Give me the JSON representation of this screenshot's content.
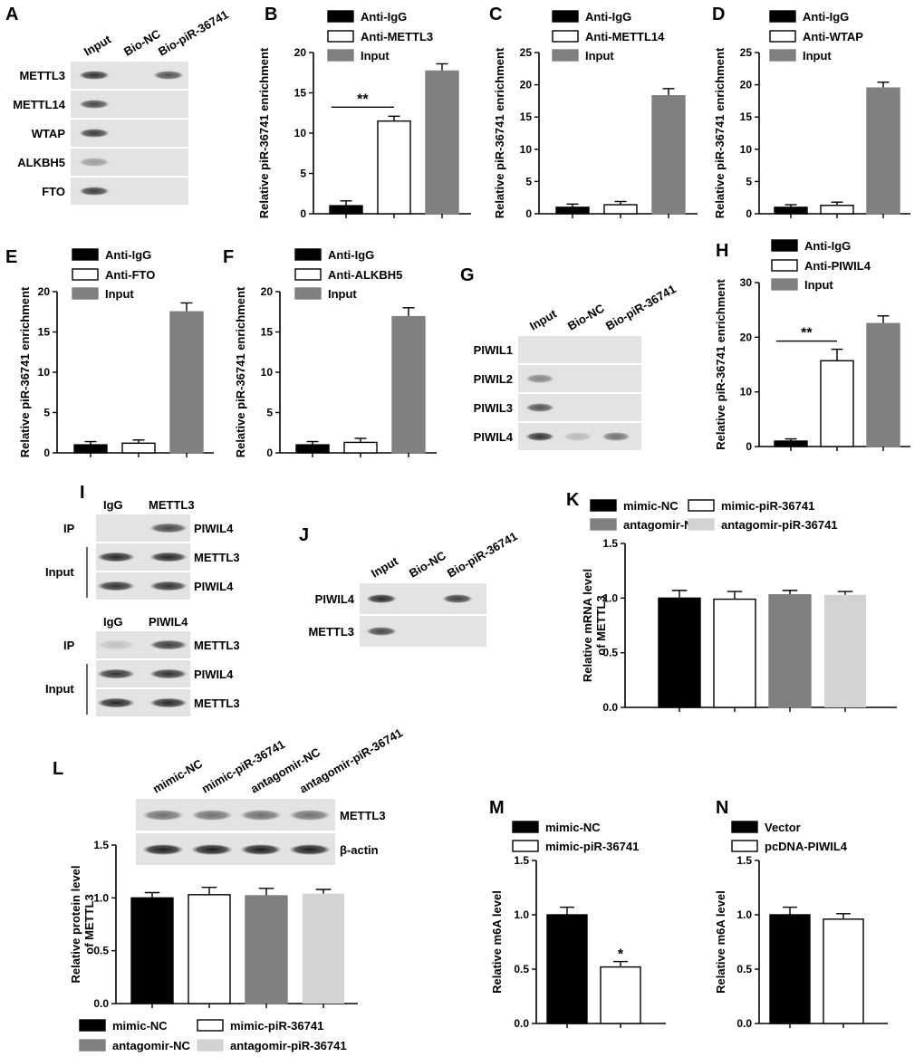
{
  "panels": {
    "A": {
      "label": "A",
      "lanes": [
        "Input",
        "Bio-NC",
        "Bio-piR-36741"
      ],
      "rows": [
        "METTL3",
        "METTL14",
        "WTAP",
        "ALKBH5",
        "FTO"
      ],
      "bands": [
        [
          0.85,
          0,
          0.7
        ],
        [
          0.75,
          0,
          0
        ],
        [
          0.8,
          0,
          0
        ],
        [
          0.35,
          0,
          0
        ],
        [
          0.8,
          0,
          0
        ]
      ]
    },
    "G": {
      "label": "G",
      "lanes": [
        "Input",
        "Bio-NC",
        "Bio-piR-36741"
      ],
      "rows": [
        "PIWIL1",
        "PIWIL2",
        "PIWIL3",
        "PIWIL4"
      ],
      "bands": [
        [
          0,
          0,
          0
        ],
        [
          0.45,
          0,
          0
        ],
        [
          0.7,
          0,
          0
        ],
        [
          0.85,
          0.2,
          0.55
        ]
      ]
    },
    "I": {
      "label": "I",
      "top": {
        "lanes": [
          "IgG",
          "METTL3"
        ],
        "rows": [
          {
            "name": "PIWIL4",
            "group": "IP",
            "bands": [
              0,
              0.75
            ]
          },
          {
            "name": "METTL3",
            "group": "Input",
            "bands": [
              0.9,
              0.9
            ]
          },
          {
            "name": "PIWIL4",
            "group": "Input",
            "bands": [
              0.85,
              0.85
            ]
          }
        ]
      },
      "bottom": {
        "lanes": [
          "IgG",
          "PIWIL4"
        ],
        "rows": [
          {
            "name": "METTL3",
            "group": "IP",
            "bands": [
              0.15,
              0.8
            ]
          },
          {
            "name": "PIWIL4",
            "group": "Input",
            "bands": [
              0.85,
              0.85
            ]
          },
          {
            "name": "METTL3",
            "group": "Input",
            "bands": [
              0.9,
              0.9
            ]
          }
        ]
      },
      "ip_label": "IP",
      "input_label": "Input"
    },
    "J": {
      "label": "J",
      "lanes": [
        "Input",
        "Bio-NC",
        "Bio-piR-36741"
      ],
      "rows": [
        "PIWIL4",
        "METTL3"
      ],
      "bands": [
        [
          0.9,
          0,
          0.8
        ],
        [
          0.75,
          0,
          0
        ]
      ]
    },
    "L_blot": {
      "label": "L",
      "lanes": [
        "mimic-NC",
        "mimic-piR-36741",
        "antagomir-NC",
        "antagomir-piR-36741"
      ],
      "rows": [
        "METTL3",
        "β-actin"
      ],
      "bands": [
        [
          0.55,
          0.55,
          0.55,
          0.55
        ],
        [
          0.95,
          0.95,
          0.95,
          0.95
        ]
      ]
    }
  },
  "chart_data": [
    {
      "panel": "B",
      "type": "bar",
      "categories": [
        "Anti-IgG",
        "Anti-METTL3",
        "Input"
      ],
      "values": [
        1.0,
        11.5,
        17.7
      ],
      "errors": [
        0.6,
        0.6,
        0.9
      ],
      "colors": [
        "#000000",
        "#ffffff",
        "#808080"
      ],
      "ylabel": "Relative piR-36741 enrichment",
      "ylim": [
        0,
        20
      ],
      "yticks": [
        0,
        5,
        10,
        15,
        20
      ],
      "legend": [
        "Anti-IgG",
        "Anti-METTL3",
        "Input"
      ],
      "sig": {
        "from": 0,
        "to": 1,
        "label": "**"
      }
    },
    {
      "panel": "C",
      "type": "bar",
      "categories": [
        "Anti-IgG",
        "Anti-METTL14",
        "Input"
      ],
      "values": [
        1.0,
        1.4,
        18.3
      ],
      "errors": [
        0.5,
        0.5,
        1.1
      ],
      "colors": [
        "#000000",
        "#ffffff",
        "#808080"
      ],
      "ylabel": "Relative piR-36741 enrichment",
      "ylim": [
        0,
        25
      ],
      "yticks": [
        0,
        5,
        10,
        15,
        20,
        25
      ],
      "legend": [
        "Anti-IgG",
        "Anti-METTL14",
        "Input"
      ]
    },
    {
      "panel": "D",
      "type": "bar",
      "categories": [
        "Anti-IgG",
        "Anti-WTAP",
        "Input"
      ],
      "values": [
        1.0,
        1.3,
        19.5
      ],
      "errors": [
        0.4,
        0.5,
        0.9
      ],
      "colors": [
        "#000000",
        "#ffffff",
        "#808080"
      ],
      "ylabel": "Relative piR-36741 enrichment",
      "ylim": [
        0,
        25
      ],
      "yticks": [
        0,
        5,
        10,
        15,
        20,
        25
      ],
      "legend": [
        "Anti-IgG",
        "Anti-WTAP",
        "Input"
      ]
    },
    {
      "panel": "E",
      "type": "bar",
      "categories": [
        "Anti-IgG",
        "Anti-FTO",
        "Input"
      ],
      "values": [
        1.0,
        1.2,
        17.5
      ],
      "errors": [
        0.4,
        0.4,
        1.1
      ],
      "colors": [
        "#000000",
        "#ffffff",
        "#808080"
      ],
      "ylabel": "Relative piR-36741 enrichment",
      "ylim": [
        0,
        20
      ],
      "yticks": [
        0,
        5,
        10,
        15,
        20
      ],
      "legend": [
        "Anti-IgG",
        "Anti-FTO",
        "Input"
      ]
    },
    {
      "panel": "F",
      "type": "bar",
      "categories": [
        "Anti-IgG",
        "Anti-ALKBH5",
        "Input"
      ],
      "values": [
        1.0,
        1.3,
        16.9
      ],
      "errors": [
        0.4,
        0.5,
        1.1
      ],
      "colors": [
        "#000000",
        "#ffffff",
        "#808080"
      ],
      "ylabel": "Relative piR-36741 enrichment",
      "ylim": [
        0,
        20
      ],
      "yticks": [
        0,
        5,
        10,
        15,
        20
      ],
      "legend": [
        "Anti-IgG",
        "Anti-ALKBH5",
        "Input"
      ]
    },
    {
      "panel": "H",
      "type": "bar",
      "categories": [
        "Anti-IgG",
        "Anti-PIWIL4",
        "Input"
      ],
      "values": [
        1.0,
        15.7,
        22.5
      ],
      "errors": [
        0.4,
        2.1,
        1.4
      ],
      "colors": [
        "#000000",
        "#ffffff",
        "#808080"
      ],
      "ylabel": "Relative piR-36741 enrichment",
      "ylim": [
        0,
        30
      ],
      "yticks": [
        0,
        10,
        20,
        30
      ],
      "legend": [
        "Anti-IgG",
        "Anti-PIWIL4",
        "Input"
      ],
      "sig": {
        "from": 0,
        "to": 1,
        "label": "**"
      }
    },
    {
      "panel": "K",
      "type": "bar",
      "categories": [
        "mimic-NC",
        "mimic-piR-36741",
        "antagomir-NC",
        "antagomir-piR-36741"
      ],
      "values": [
        1.0,
        0.99,
        1.03,
        1.03
      ],
      "errors": [
        0.07,
        0.07,
        0.04,
        0.03
      ],
      "colors": [
        "#000000",
        "#ffffff",
        "#808080",
        "#d3d3d3"
      ],
      "ylabel": "Relative mRNA level of METTL3",
      "ylim": [
        0,
        1.5
      ],
      "yticks": [
        "0.0",
        "0.5",
        "1.0",
        "1.5"
      ],
      "legend": [
        "mimic-NC",
        "mimic-piR-36741",
        "antagomir-NC",
        "antagomir-piR-36741"
      ]
    },
    {
      "panel": "L",
      "type": "bar",
      "categories": [
        "mimic-NC",
        "mimic-piR-36741",
        "antagomir-NC",
        "antagomir-piR-36741"
      ],
      "values": [
        1.0,
        1.03,
        1.02,
        1.04
      ],
      "errors": [
        0.05,
        0.07,
        0.07,
        0.04
      ],
      "colors": [
        "#000000",
        "#ffffff",
        "#808080",
        "#d3d3d3"
      ],
      "ylabel": "Relative protein level of METTL3",
      "ylim": [
        0,
        1.5
      ],
      "yticks": [
        "0.0",
        "0.5",
        "1.0",
        "1.5"
      ],
      "legend": [
        "mimic-NC",
        "mimic-piR-36741",
        "antagomir-NC",
        "antagomir-piR-36741"
      ]
    },
    {
      "panel": "M",
      "type": "bar",
      "categories": [
        "mimic-NC",
        "mimic-piR-36741"
      ],
      "values": [
        1.0,
        0.52
      ],
      "errors": [
        0.07,
        0.05
      ],
      "colors": [
        "#000000",
        "#ffffff"
      ],
      "ylabel": "Relative m6A level",
      "ylim": [
        0,
        1.5
      ],
      "yticks": [
        "0.0",
        "0.5",
        "1.0",
        "1.5"
      ],
      "legend": [
        "mimic-NC",
        "mimic-piR-36741"
      ],
      "star": {
        "bar": 1,
        "label": "*"
      }
    },
    {
      "panel": "N",
      "type": "bar",
      "categories": [
        "Vector",
        "pcDNA-PIWIL4"
      ],
      "values": [
        1.0,
        0.96
      ],
      "errors": [
        0.07,
        0.05
      ],
      "colors": [
        "#000000",
        "#ffffff"
      ],
      "ylabel": "Relative m6A level",
      "ylim": [
        0,
        1.5
      ],
      "yticks": [
        "0.0",
        "0.5",
        "1.0",
        "1.5"
      ],
      "legend": [
        "Vector",
        "pcDNA-PIWIL4"
      ]
    }
  ]
}
